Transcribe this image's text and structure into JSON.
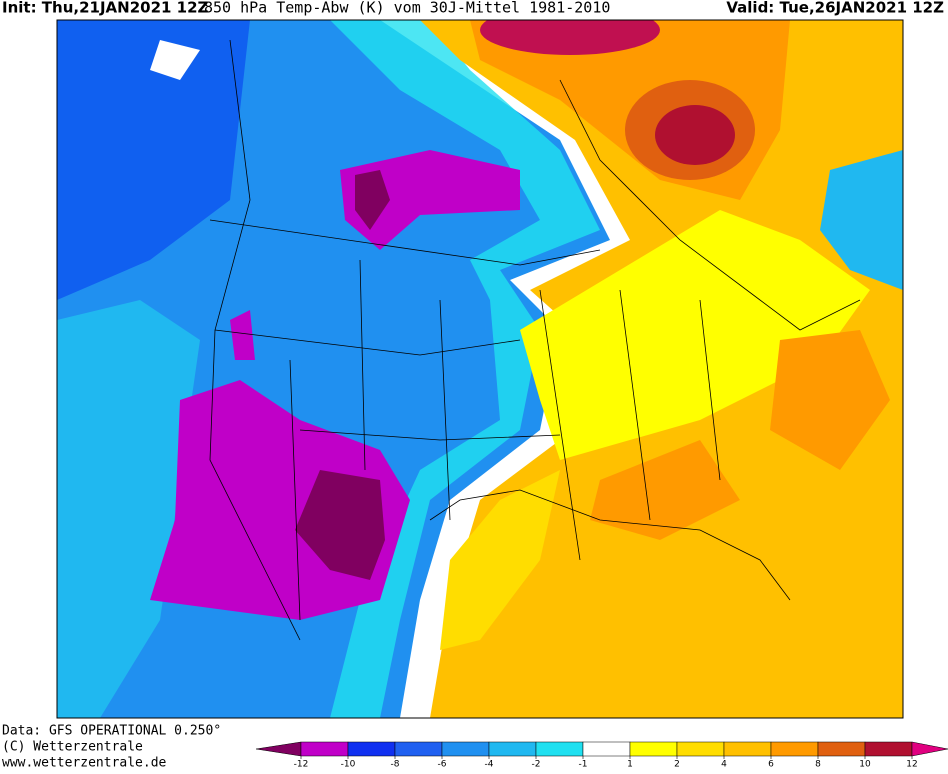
{
  "header": {
    "init": "Init: Thu,21JAN2021 12Z",
    "title": "850 hPa Temp-Abw (K) vom 30J-Mittel 1981-2010",
    "valid": "Valid: Tue,26JAN2021 12Z"
  },
  "footer": {
    "data": "Data: GFS OPERATIONAL 0.250°",
    "copyright": "(C) Wetterzentrale",
    "url": "www.wetterzentrale.de"
  },
  "legend": {
    "ticks": [
      -12,
      -10,
      -8,
      -6,
      -4,
      -2,
      -1,
      1,
      2,
      4,
      6,
      8,
      10,
      12
    ],
    "colors": [
      "#800060",
      "#c000c8",
      "#1030f0",
      "#2060f0",
      "#2090f0",
      "#20b8f0",
      "#20e0f0",
      "#ffffff",
      "#ffff00",
      "#ffdd00",
      "#ffc000",
      "#ff9a00",
      "#e06010",
      "#b01030",
      "#e00080"
    ]
  }
}
